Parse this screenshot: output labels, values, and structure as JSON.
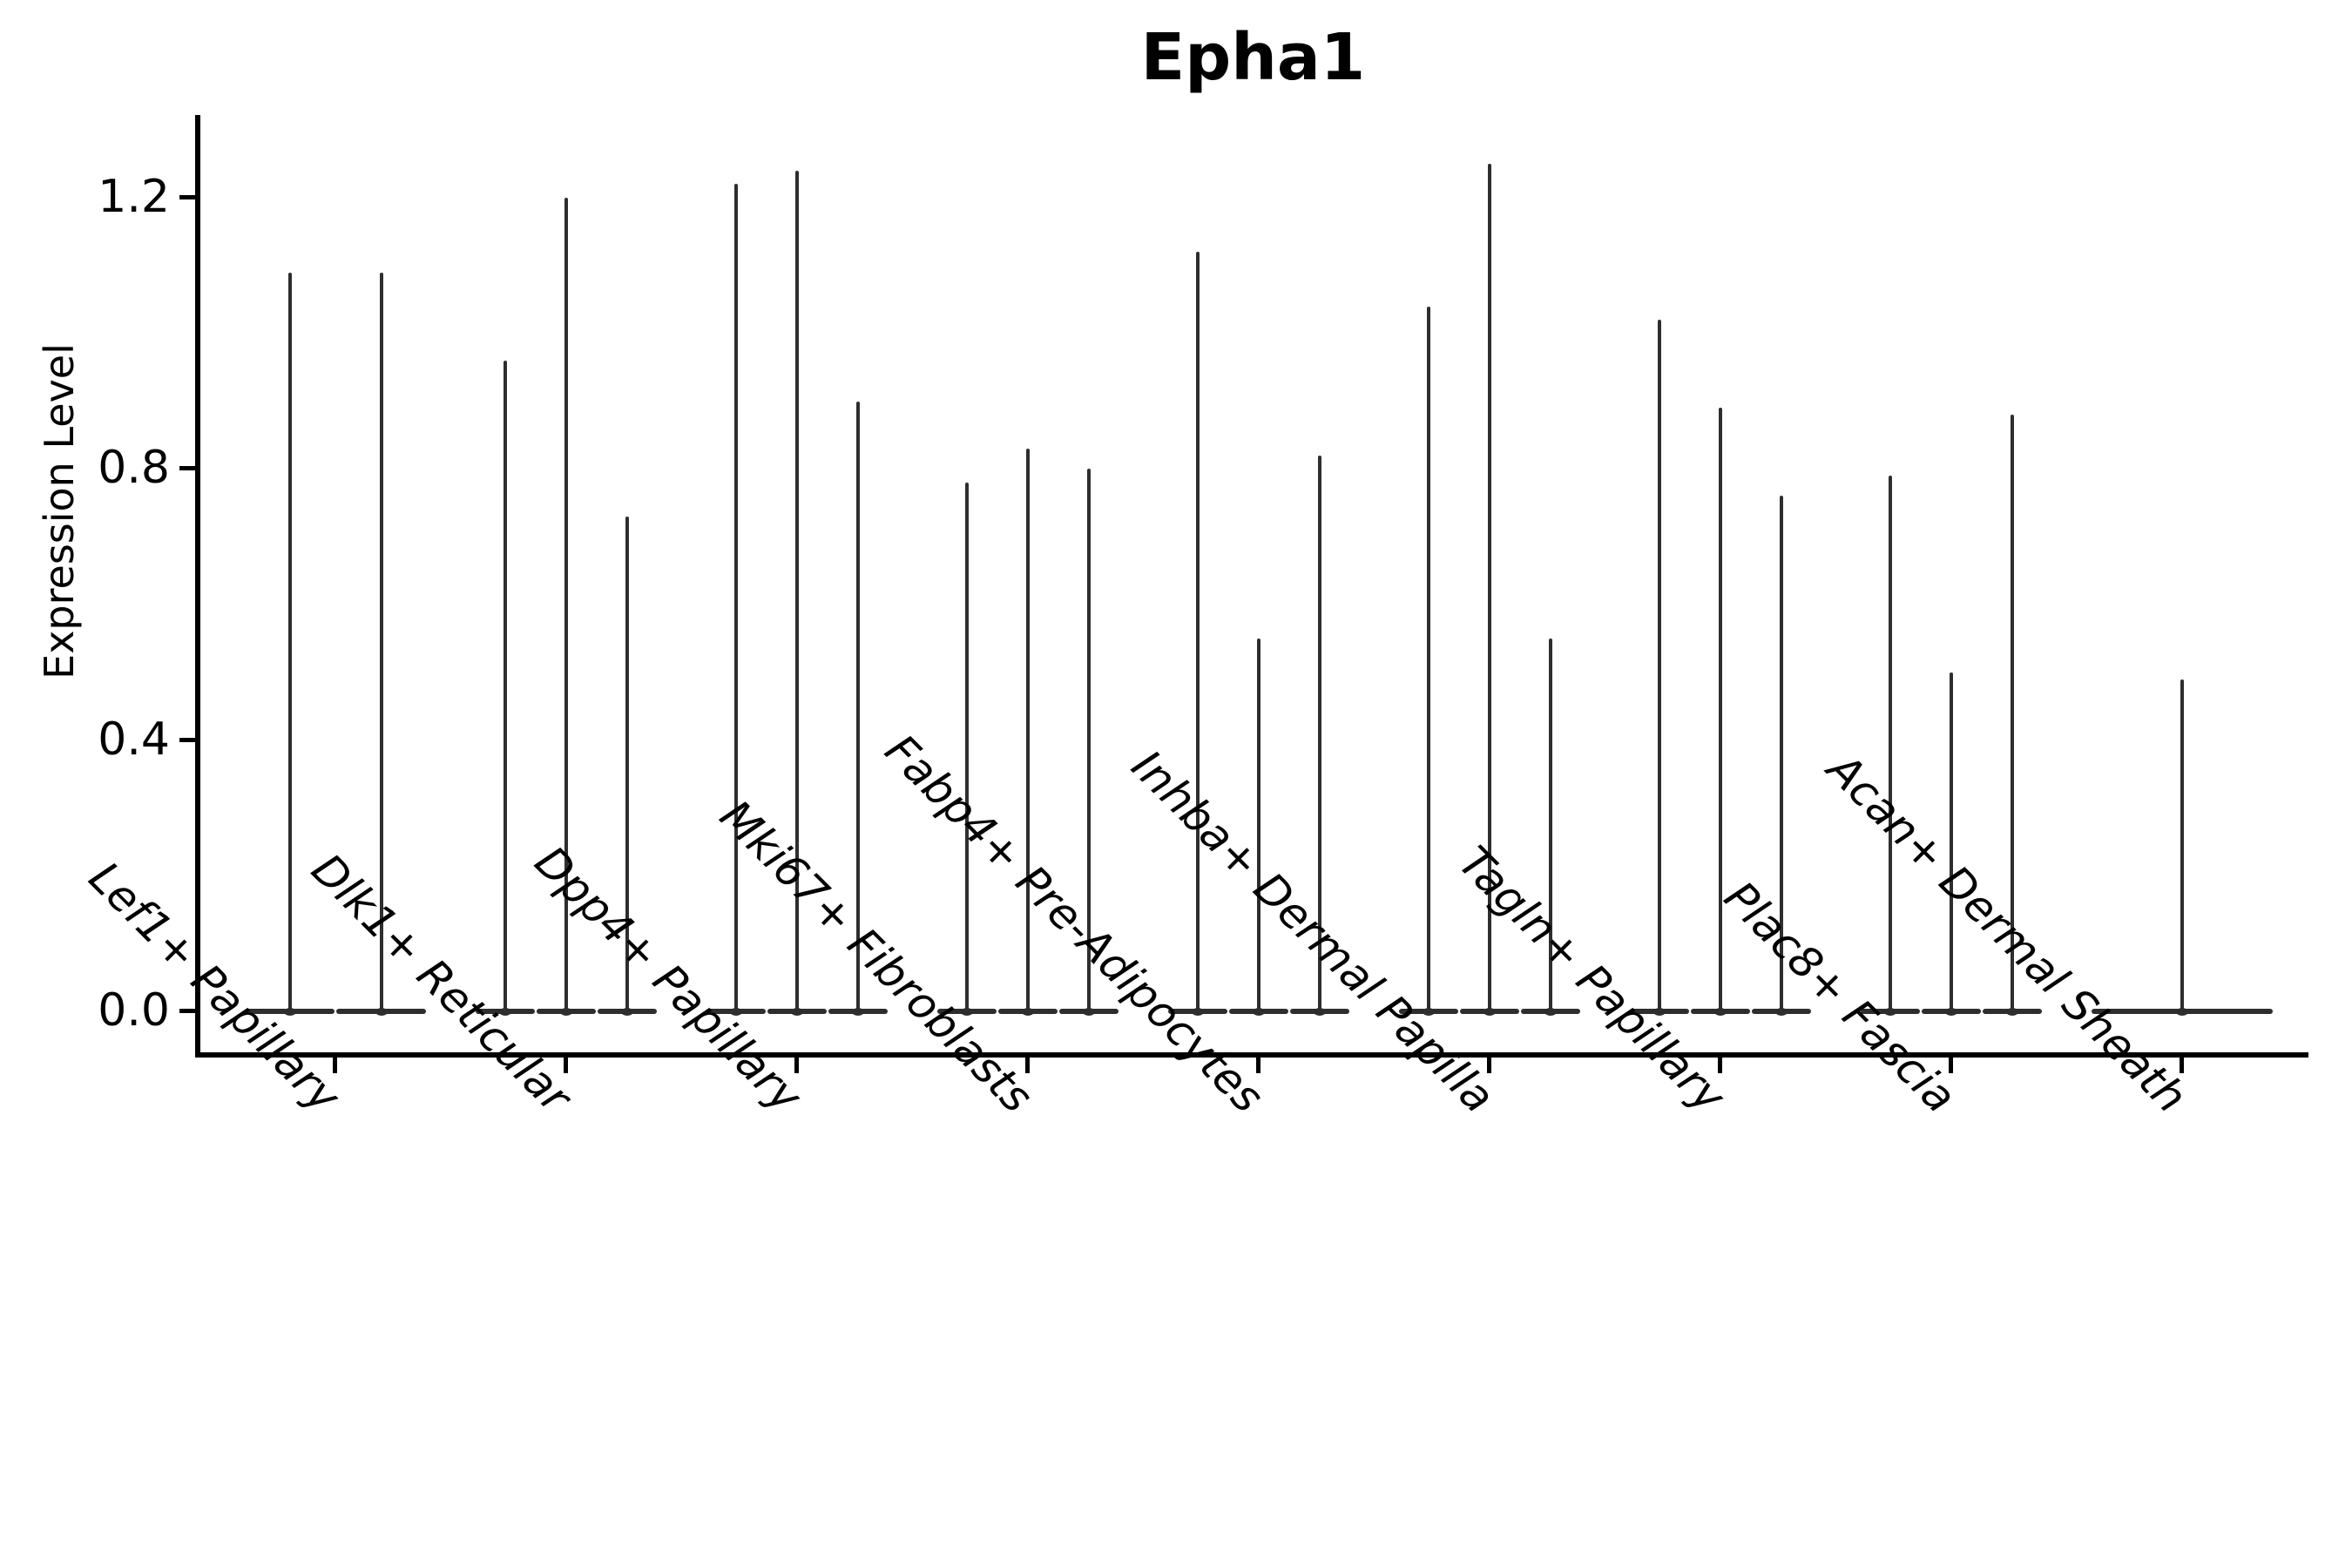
{
  "title": "Epha1",
  "colors": {
    "violin_line": "#2e2e2e",
    "axis": "#000000",
    "text": "#000000",
    "background": "#ffffff"
  },
  "chart_data": {
    "type": "violin",
    "title": "Epha1",
    "xlabel": "",
    "ylabel": "Expression Level",
    "ylim": [
      -0.07,
      1.33
    ],
    "grid": false,
    "legend": "none",
    "y_tick_values": [
      1.2,
      0.8,
      0.4,
      0.0
    ],
    "y_tick_labels": [
      "1.2",
      "0.8",
      "0.4",
      "0.0"
    ],
    "x_tick_rotation_deg": 45,
    "categories": [
      "Lef1+ Papillary",
      "Dlk1+ Reticular",
      "Dpp4+ Papillary",
      "Mki67+ Fibroblasts",
      "Fabp4+ Pre-Adipocytes",
      "Inhba+ Dermal Papilla",
      "Tagln+ Papillary",
      "Plac8+ Fascia",
      "Acan+ Dermal Sheath"
    ],
    "shape_note": "each violin is collapsed flat at expression 0 with a thin vertical spike rising to its maximum value",
    "groups": [
      {
        "category": "Lef1+ Papillary",
        "violin_max_values": [
          1.09,
          1.09
        ]
      },
      {
        "category": "Dlk1+ Reticular",
        "violin_max_values": [
          0.96,
          1.2,
          0.73
        ]
      },
      {
        "category": "Dpp4+ Papillary",
        "violin_max_values": [
          1.22,
          1.24,
          0.9
        ]
      },
      {
        "category": "Mki67+ Fibroblasts",
        "violin_max_values": [
          0.78,
          0.83,
          0.8
        ]
      },
      {
        "category": "Fabp4+ Pre-Adipocytes",
        "violin_max_values": [
          1.12,
          0.55,
          0.82
        ]
      },
      {
        "category": "Inhba+ Dermal Papilla",
        "violin_max_values": [
          1.04,
          1.25,
          0.55
        ]
      },
      {
        "category": "Tagln+ Papillary",
        "violin_max_values": [
          1.02,
          0.89,
          0.76
        ]
      },
      {
        "category": "Plac8+ Fascia",
        "violin_max_values": [
          0.79,
          0.5,
          0.88
        ]
      },
      {
        "category": "Acan+ Dermal Sheath",
        "violin_max_values": [
          0.49
        ]
      }
    ]
  }
}
